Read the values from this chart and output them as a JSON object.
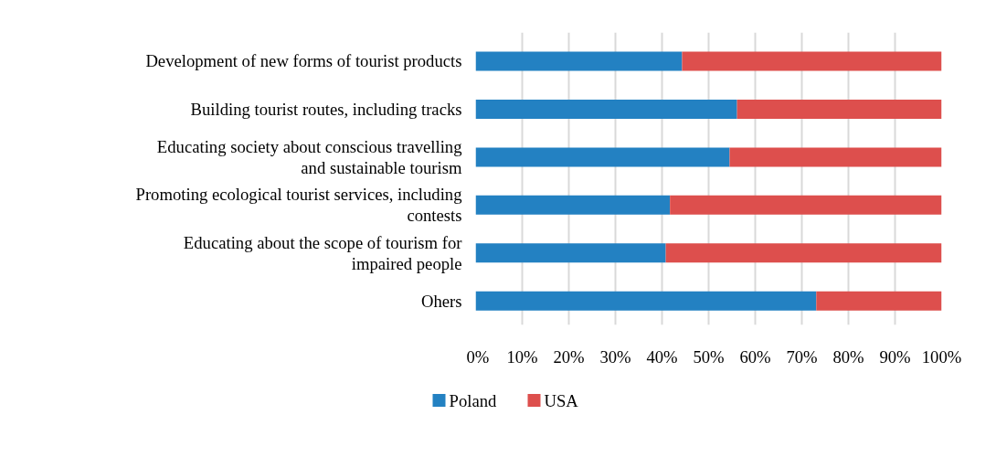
{
  "chart_data": {
    "type": "bar",
    "orientation": "horizontal",
    "stacked": true,
    "categories": [
      "Development of new forms of tourist products",
      "Building tourist routes, including tracks",
      "Educating society about conscious travelling\nand sustainable tourism",
      "Promoting ecological tourist services, including\ncontests",
      "Educating about the scope of tourism for\nimpaired people",
      "Ohers"
    ],
    "series": [
      {
        "name": "Poland",
        "color": "#2381c2",
        "values": [
          44.3,
          56.1,
          54.5,
          41.7,
          40.8,
          73.1
        ]
      },
      {
        "name": "USA",
        "color": "#dd4f4d",
        "values": [
          55.7,
          43.9,
          45.5,
          58.3,
          59.2,
          26.9
        ]
      }
    ],
    "xlim": [
      0,
      100
    ],
    "xticks": [
      {
        "value": 0,
        "label": "0%"
      },
      {
        "value": 10,
        "label": "10%"
      },
      {
        "value": 20,
        "label": "20%"
      },
      {
        "value": 30,
        "label": "30%"
      },
      {
        "value": 40,
        "label": "40%"
      },
      {
        "value": 50,
        "label": "50%"
      },
      {
        "value": 60,
        "label": "60%"
      },
      {
        "value": 70,
        "label": "70%"
      },
      {
        "value": 80,
        "label": "80%"
      },
      {
        "value": 90,
        "label": "90%"
      },
      {
        "value": 100,
        "label": "100%"
      }
    ],
    "grid": "x",
    "legend": "bottom"
  }
}
